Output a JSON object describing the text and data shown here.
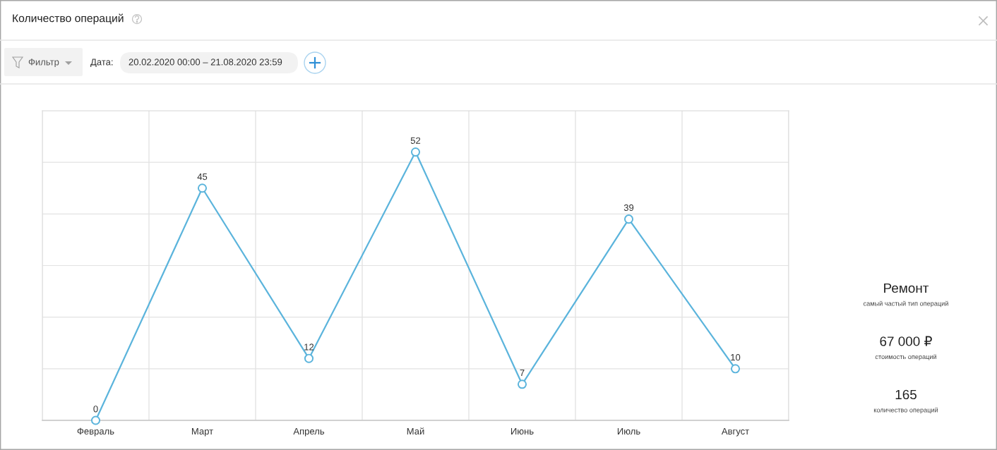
{
  "chart_data": [
    {
      "type": "line",
      "title": "Количество операций",
      "annotations": [
        "Фильтр",
        "Дата:",
        "20.02.2020 00:00 – 21.08.2020 23:59"
      ],
      "categories": [
        "Февраль",
        "Март",
        "Апрель",
        "Май",
        "Июнь",
        "Июль",
        "Август"
      ],
      "series": [
        {
          "color": "#5bb4dc",
          "values": [
            0,
            45,
            12,
            52,
            7,
            39,
            10
          ]
        }
      ],
      "ylim": [
        0,
        60
      ],
      "yticks": [
        {
          "value": 0,
          "label": null
        },
        {
          "value": 10,
          "label": null
        },
        {
          "value": 20,
          "label": null
        },
        {
          "value": 30,
          "label": null
        },
        {
          "value": 40,
          "label": null
        },
        {
          "value": 50,
          "label": null
        },
        {
          "value": 60,
          "label": null
        }
      ],
      "tick_labels": "x",
      "grid": true,
      "marker": "circle",
      "line_style": "solid",
      "data_labels": true
    },
    {
      "type": "other",
      "annotations": [
        "Ремонт",
        "самый частый тип операций",
        "67 000 ₽",
        "стоимость операций",
        "165",
        "количество операций"
      ]
    }
  ]
}
